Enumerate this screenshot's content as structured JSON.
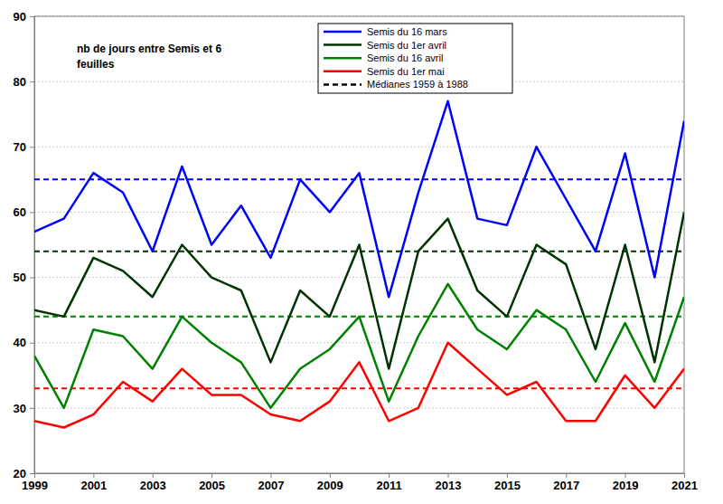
{
  "chart_data": {
    "type": "line",
    "title": "nb de jours entre Semis et 6 feuilles",
    "x": [
      1999,
      2000,
      2001,
      2002,
      2003,
      2004,
      2005,
      2006,
      2007,
      2008,
      2009,
      2010,
      2011,
      2012,
      2013,
      2014,
      2015,
      2016,
      2017,
      2018,
      2019,
      2020,
      2021
    ],
    "xlim": [
      1999,
      2021
    ],
    "xticks": [
      1999,
      2001,
      2003,
      2005,
      2007,
      2009,
      2011,
      2013,
      2015,
      2017,
      2019,
      2021
    ],
    "ylim": [
      20,
      90
    ],
    "yticks": [
      20,
      30,
      40,
      50,
      60,
      70,
      80,
      90
    ],
    "grid": "y",
    "legend": "top",
    "series": [
      {
        "name": "Semis du 16 mars",
        "color": "#0000ff",
        "line_style": "solid",
        "values": [
          57,
          59,
          66,
          63,
          54,
          67,
          55,
          61,
          53,
          65,
          60,
          66,
          47,
          63,
          77,
          59,
          58,
          70,
          62,
          54,
          69,
          50,
          74
        ]
      },
      {
        "name": "Semis du 1er avril",
        "color": "#003300",
        "line_style": "solid",
        "values": [
          45,
          44,
          53,
          51,
          47,
          55,
          50,
          48,
          37,
          48,
          44,
          55,
          36,
          54,
          59,
          48,
          44,
          55,
          52,
          39,
          55,
          37,
          60
        ]
      },
      {
        "name": "Semis du 16 avril",
        "color": "#008000",
        "line_style": "solid",
        "values": [
          38,
          30,
          42,
          41,
          36,
          44,
          40,
          37,
          30,
          36,
          39,
          44,
          31,
          41,
          49,
          42,
          39,
          45,
          42,
          34,
          43,
          34,
          47
        ]
      },
      {
        "name": "Semis du 1er mai",
        "color": "#ff0000",
        "line_style": "solid",
        "values": [
          28,
          27,
          29,
          34,
          31,
          36,
          32,
          32,
          29,
          28,
          31,
          37,
          28,
          30,
          40,
          36,
          32,
          34,
          28,
          28,
          35,
          30,
          36
        ]
      }
    ],
    "reference_lines": {
      "name": "Médianes 1959 à 1988",
      "color": "#000000",
      "line_style": "dashed",
      "values": [
        65,
        54,
        44,
        33
      ],
      "colors": [
        "#0000ff",
        "#003300",
        "#008000",
        "#ff0000"
      ]
    }
  }
}
